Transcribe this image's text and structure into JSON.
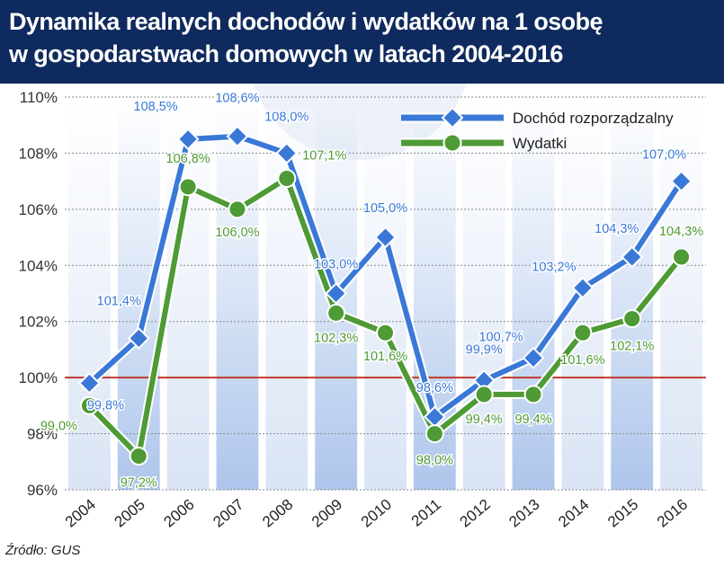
{
  "header": {
    "title_line1": "Dynamika realnych dochodów i wydatków na 1 osobę",
    "title_line2": "w gospodarstwach domowych w latach 2004-2016"
  },
  "source": "Źródło: GUS",
  "colors": {
    "header_bg": "#0f2a5e",
    "income": "#3a78d8",
    "expenses": "#4e9a35",
    "reference_line": "#c0392b"
  },
  "chart_data": {
    "type": "line",
    "title": "Dynamika realnych dochodów i wydatków na 1 osobę w gospodarstwach domowych w latach 2004-2016",
    "categories": [
      "2004",
      "2005",
      "2006",
      "2007",
      "2008",
      "2009",
      "2010",
      "2011",
      "2012",
      "2013",
      "2014",
      "2015",
      "2016"
    ],
    "series": [
      {
        "name": "Dochód rozporządzalny",
        "marker": "diamond",
        "values": [
          99.8,
          101.4,
          108.5,
          108.6,
          108.0,
          103.0,
          105.0,
          98.6,
          99.9,
          100.7,
          103.2,
          104.3,
          107.0
        ],
        "labels": [
          "99,8%",
          "101,4%",
          "108,5%",
          "108,6%",
          "108,0%",
          "103,0%",
          "105,0%",
          "98,6%",
          "99,9%",
          "100,7%",
          "103,2%",
          "104,3%",
          "107,0%"
        ]
      },
      {
        "name": "Wydatki",
        "marker": "circle",
        "values": [
          99.0,
          97.2,
          106.8,
          106.0,
          107.1,
          102.3,
          101.6,
          98.0,
          99.4,
          99.4,
          101.6,
          102.1,
          104.3
        ],
        "labels": [
          "99,0%",
          "97,2%",
          "106,8%",
          "106,0%",
          "107,1%",
          "102,3%",
          "101,6%",
          "98,0%",
          "99,4%",
          "99,4%",
          "101,6%",
          "102,1%",
          "104,3%"
        ]
      }
    ],
    "ylim": [
      96,
      110
    ],
    "yticks": [
      96,
      98,
      100,
      102,
      104,
      106,
      108,
      110
    ],
    "ytick_labels": [
      "96%",
      "98%",
      "100%",
      "102%",
      "104%",
      "106%",
      "108%",
      "110%"
    ],
    "reference_value": 100,
    "xlabel": "",
    "ylabel": "",
    "legend": "top-right",
    "grid": "horizontal-dashed"
  }
}
